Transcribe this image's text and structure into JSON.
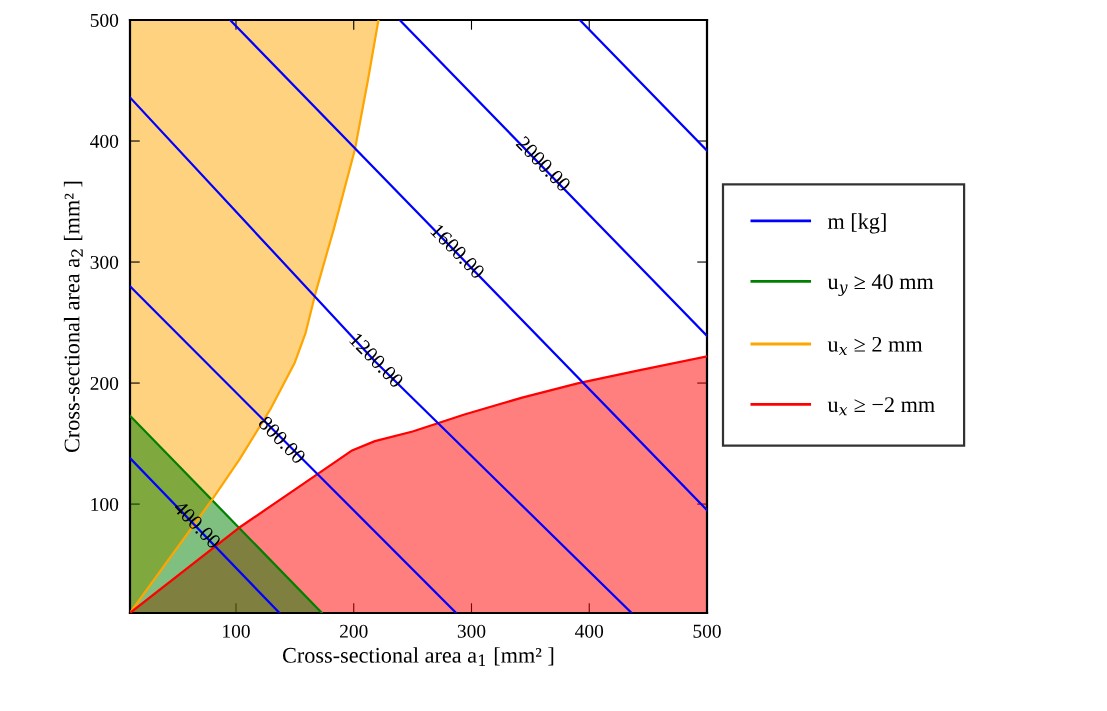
{
  "chart_data": {
    "type": "line",
    "xlabel": "Cross-sectional area a$_{1}$ [mm² ]",
    "ylabel": "Cross-sectional area a$_{2}$ [mm² ]",
    "xlim": [
      10,
      500
    ],
    "ylim": [
      10,
      500
    ],
    "xticks": [
      100,
      200,
      300,
      400,
      500
    ],
    "yticks": [
      100,
      200,
      300,
      400,
      500
    ],
    "grid": false,
    "legend": "right",
    "series": [
      {
        "name": "m [kg]",
        "color": "#0000ff",
        "x": [
          10,
          137
        ],
        "values": [
          138,
          10
        ]
      },
      {
        "color": "#0000ff",
        "x": [
          10,
          287
        ],
        "values": [
          280,
          10
        ]
      },
      {
        "color": "#0000ff",
        "x": [
          10,
          218,
          436
        ],
        "values": [
          436,
          218,
          10
        ]
      },
      {
        "color": "#0000ff",
        "x": [
          95,
          500
        ],
        "values": [
          500,
          95
        ]
      },
      {
        "color": "#0000ff",
        "x": [
          239,
          500
        ],
        "values": [
          500,
          239
        ]
      },
      {
        "color": "#0000ff",
        "x": [
          392,
          500
        ],
        "values": [
          500,
          392
        ]
      },
      {
        "type": "area",
        "name": "u$_{y}$ ≥ 40 mm",
        "color": "#008000",
        "x": [
          10,
          173
        ],
        "values": [
          173,
          10
        ]
      },
      {
        "type": "line",
        "name": "u$_{x}$ ≥ 2 mm",
        "color": "#ffa500",
        "x": [
          10,
          80,
          103,
          129,
          150,
          159,
          168,
          183,
          201,
          212,
          221
        ],
        "values": [
          10,
          104,
          137,
          178,
          217,
          241,
          276,
          327,
          393,
          450,
          500
        ],
        "lower": [
          10,
          104,
          137,
          178,
          217,
          241,
          276,
          327,
          393,
          450,
          500
        ],
        "upper": [
          500,
          500,
          500,
          500,
          500,
          500,
          500,
          500,
          500,
          500,
          500
        ]
      },
      {
        "type": "area",
        "name": "u$_{x}$ ≥ −2 mm",
        "color": "#ff0000",
        "x": [
          10,
          102,
          150,
          198,
          218,
          250,
          294,
          343,
          391,
          440,
          500
        ],
        "values": [
          10,
          80,
          112,
          144,
          152,
          160,
          174,
          188,
          200,
          210,
          222
        ]
      }
    ],
    "annotations": [
      {
        "text": "400.00",
        "x": 66,
        "y": 82
      },
      {
        "text": "800.00",
        "x": 138,
        "y": 152
      },
      {
        "text": "1200.00",
        "x": 218,
        "y": 218
      },
      {
        "text": "1600.00",
        "x": 287,
        "y": 308
      },
      {
        "text": "2000.00",
        "x": 360,
        "y": 380
      }
    ]
  }
}
